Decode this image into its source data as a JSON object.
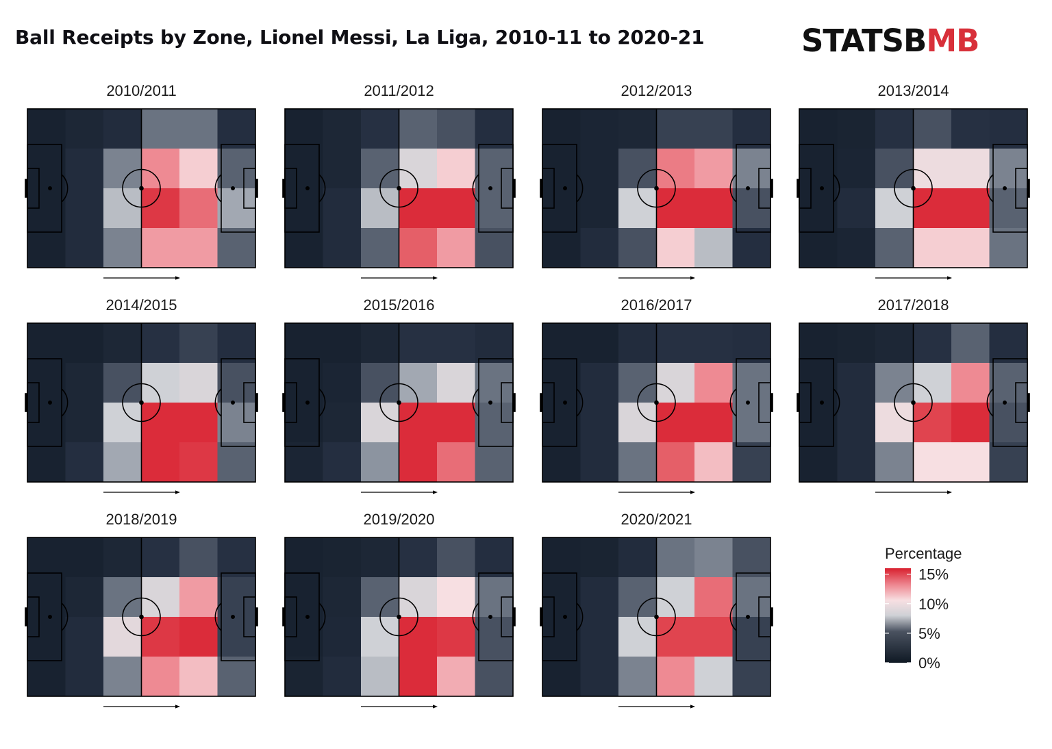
{
  "header": {
    "title": "Ball Receipts by Zone, Lionel Messi, La Liga, 2010-11 to 2020-21",
    "logo_part1": "STATSB",
    "logo_part2": "MB",
    "logo_mark": "bomb-icon"
  },
  "colors": {
    "low": "#0f1924",
    "mid": "#cfd1d6",
    "high": "#d8202f",
    "pitch_line": "#000000"
  },
  "chart_data": {
    "type": "heatmap",
    "title": "Ball Receipts by Zone, Lionel Messi, La Liga, 2010-11 to 2020-21",
    "grid": "6 columns x 4 rows per pitch, attacking left to right",
    "legend": {
      "title": "Percentage",
      "ticks": [
        "15%",
        "10%",
        "5%",
        "0%"
      ],
      "range": [
        0,
        16
      ]
    },
    "panels": [
      {
        "season": "2010/2011",
        "values": [
          [
            1.2,
            1.8,
            2.5,
            5.0,
            5.0,
            2.8
          ],
          [
            1.2,
            2.5,
            5.5,
            12.0,
            10.0,
            4.5
          ],
          [
            1.2,
            2.5,
            7.0,
            15.0,
            13.0,
            6.5
          ],
          [
            1.2,
            2.5,
            5.5,
            11.5,
            11.5,
            4.5
          ]
        ]
      },
      {
        "season": "2011/2012",
        "values": [
          [
            1.2,
            1.8,
            3.0,
            4.5,
            4.0,
            2.8
          ],
          [
            1.2,
            1.8,
            4.5,
            8.0,
            10.0,
            4.5
          ],
          [
            1.2,
            2.5,
            7.0,
            15.5,
            15.5,
            4.5
          ],
          [
            1.2,
            2.5,
            4.5,
            13.5,
            11.5,
            4.0
          ]
        ]
      },
      {
        "season": "2012/2013",
        "values": [
          [
            1.2,
            1.6,
            1.8,
            3.5,
            3.5,
            2.8
          ],
          [
            1.2,
            1.6,
            4.0,
            12.5,
            11.5,
            5.5
          ],
          [
            1.2,
            1.6,
            7.5,
            15.5,
            15.5,
            4.0
          ],
          [
            1.2,
            2.5,
            4.0,
            10.0,
            7.0,
            2.8
          ]
        ]
      },
      {
        "season": "2013/2014",
        "values": [
          [
            1.2,
            1.4,
            3.0,
            4.0,
            3.0,
            2.8
          ],
          [
            1.2,
            1.6,
            4.0,
            9.0,
            9.0,
            5.5
          ],
          [
            1.2,
            2.5,
            7.5,
            15.5,
            15.5,
            4.5
          ],
          [
            1.2,
            1.6,
            4.5,
            10.0,
            10.0,
            5.0
          ]
        ]
      },
      {
        "season": "2014/2015",
        "values": [
          [
            1.2,
            1.2,
            1.8,
            3.0,
            3.5,
            2.8
          ],
          [
            1.2,
            1.8,
            4.0,
            7.5,
            8.0,
            4.0
          ],
          [
            1.2,
            1.8,
            7.5,
            15.5,
            15.5,
            5.5
          ],
          [
            1.2,
            2.8,
            6.5,
            15.5,
            15.0,
            4.5
          ]
        ]
      },
      {
        "season": "2015/2016",
        "values": [
          [
            1.2,
            1.2,
            1.8,
            3.0,
            3.0,
            2.5
          ],
          [
            1.2,
            1.6,
            4.0,
            6.5,
            8.0,
            5.0
          ],
          [
            1.2,
            1.8,
            8.0,
            15.5,
            15.5,
            4.5
          ],
          [
            1.6,
            2.8,
            6.0,
            15.5,
            13.0,
            4.5
          ]
        ]
      },
      {
        "season": "2016/2017",
        "values": [
          [
            1.2,
            1.2,
            2.5,
            3.0,
            3.0,
            2.8
          ],
          [
            1.2,
            2.5,
            4.5,
            8.0,
            12.0,
            5.0
          ],
          [
            1.2,
            2.5,
            8.0,
            15.5,
            15.5,
            5.0
          ],
          [
            1.2,
            2.5,
            5.0,
            13.5,
            10.5,
            3.5
          ]
        ]
      },
      {
        "season": "2017/2018",
        "values": [
          [
            1.2,
            1.4,
            1.8,
            3.0,
            4.5,
            2.8
          ],
          [
            1.2,
            2.5,
            5.5,
            7.5,
            12.0,
            4.5
          ],
          [
            1.2,
            2.5,
            9.0,
            14.5,
            15.5,
            4.0
          ],
          [
            1.2,
            2.5,
            5.5,
            9.5,
            9.5,
            3.5
          ]
        ]
      },
      {
        "season": "2018/2019",
        "values": [
          [
            1.2,
            1.2,
            1.8,
            3.0,
            4.0,
            3.0
          ],
          [
            1.2,
            1.8,
            5.0,
            8.0,
            11.5,
            3.5
          ],
          [
            1.2,
            2.5,
            8.5,
            15.0,
            15.5,
            3.5
          ],
          [
            1.2,
            2.5,
            5.5,
            12.0,
            10.5,
            4.5
          ]
        ]
      },
      {
        "season": "2019/2020",
        "values": [
          [
            1.2,
            1.4,
            1.8,
            3.0,
            4.0,
            2.8
          ],
          [
            1.2,
            1.8,
            4.5,
            8.0,
            9.5,
            5.0
          ],
          [
            1.2,
            2.0,
            7.5,
            15.5,
            15.0,
            4.0
          ],
          [
            1.4,
            2.5,
            7.0,
            15.5,
            11.0,
            4.0
          ]
        ]
      },
      {
        "season": "2020/2021",
        "values": [
          [
            1.2,
            1.4,
            2.5,
            5.0,
            5.5,
            4.0
          ],
          [
            1.2,
            2.5,
            4.5,
            7.5,
            13.0,
            5.0
          ],
          [
            1.2,
            2.5,
            7.5,
            14.5,
            14.5,
            3.5
          ],
          [
            1.2,
            2.5,
            5.5,
            12.0,
            7.5,
            3.5
          ]
        ]
      }
    ]
  }
}
